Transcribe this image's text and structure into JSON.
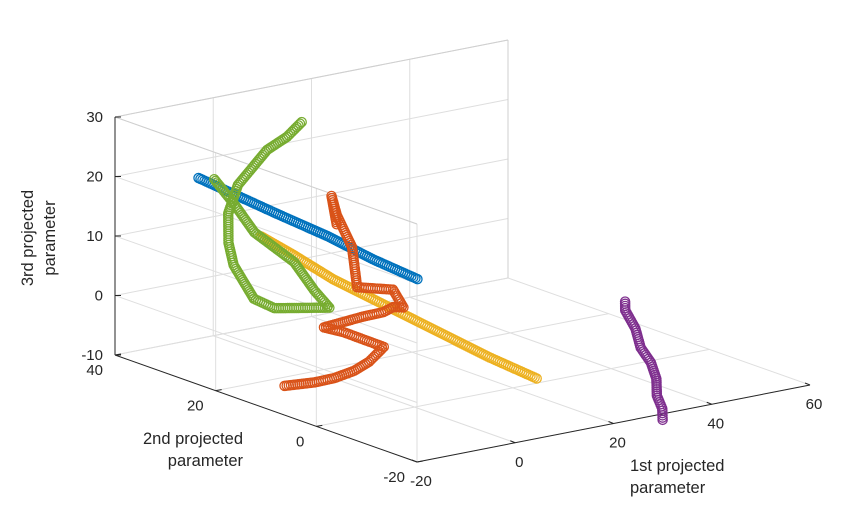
{
  "chart_data": {
    "type": "scatter",
    "projection": "3d",
    "title": "",
    "xlabel": "1st projected parameter",
    "ylabel": "2nd projected parameter",
    "zlabel": "3rd projected parameter",
    "xlabel_lines": [
      "1st projected",
      "parameter"
    ],
    "ylabel_lines": [
      "2nd projected",
      "parameter"
    ],
    "zlabel_lines": [
      "3rd projected",
      "parameter"
    ],
    "xlim": [
      -20,
      60
    ],
    "ylim": [
      -20,
      40
    ],
    "zlim": [
      -10,
      30
    ],
    "xticks": [
      "-20",
      "0",
      "20",
      "40",
      "60"
    ],
    "yticks": [
      "-20",
      "0",
      "20",
      "40"
    ],
    "zticks": [
      "-10",
      "0",
      "10",
      "20",
      "30"
    ],
    "grid": true,
    "marker": "open circle",
    "series": [
      {
        "color": "#0072BD",
        "points": [
          [
            -3,
            40,
            17
          ],
          [
            1,
            36,
            14.5
          ],
          [
            5,
            32,
            12
          ],
          [
            10,
            27,
            9
          ],
          [
            14,
            22,
            6
          ],
          [
            18,
            17,
            3.5
          ]
        ]
      },
      {
        "color": "#EDB120",
        "points": [
          [
            -1,
            29.5,
            10
          ],
          [
            3,
            27,
            7
          ],
          [
            8,
            24,
            3
          ],
          [
            14,
            19.5,
            -1
          ],
          [
            20,
            15,
            -5
          ],
          [
            26,
            10.5,
            -9
          ],
          [
            31,
            6,
            -12
          ]
        ]
      },
      {
        "color": "#77AC30",
        "points": [
          [
            -8,
            32,
            20
          ],
          [
            -8,
            28,
            17
          ],
          [
            -7,
            25,
            13
          ],
          [
            -4,
            20,
            9
          ],
          [
            -3,
            17,
            5
          ],
          [
            -3,
            14,
            3
          ],
          [
            -6,
            22,
            1
          ],
          [
            -3,
            29,
            0
          ],
          [
            -2,
            34,
            4
          ],
          [
            -1,
            36,
            7
          ],
          [
            1,
            38,
            11
          ],
          [
            4,
            39,
            15
          ],
          [
            8,
            40,
            17
          ],
          [
            12,
            41,
            19
          ],
          [
            15,
            40,
            21
          ],
          [
            18,
            40,
            23
          ]
        ]
      },
      {
        "color": "#D95319",
        "points": [
          [
            -7,
            19,
            -11
          ],
          [
            -4,
            16,
            -10
          ],
          [
            -2,
            14,
            -9
          ],
          [
            0,
            12,
            -7.5
          ],
          [
            2,
            11,
            -6
          ],
          [
            5,
            11,
            -4
          ],
          [
            3,
            17,
            -3
          ],
          [
            0,
            18,
            -2
          ],
          [
            7,
            17,
            -1
          ],
          [
            9,
            15,
            0
          ],
          [
            10,
            14,
            1
          ],
          [
            9,
            11,
            2
          ],
          [
            12,
            16,
            3
          ],
          [
            17,
            28,
            -1
          ],
          [
            18,
            30,
            5
          ],
          [
            19,
            34,
            9
          ],
          [
            21,
            37,
            11
          ],
          [
            20,
            35,
            7
          ]
        ]
      },
      {
        "color": "#7E2F8E",
        "points": [
          [
            30,
            -20,
            -11
          ],
          [
            33,
            -17,
            -10.5
          ],
          [
            36,
            -13,
            -10
          ],
          [
            40,
            -9,
            -9
          ],
          [
            43,
            -5,
            -8
          ],
          [
            45,
            -1,
            -7
          ],
          [
            47,
            2,
            -5
          ],
          [
            48,
            5,
            -3
          ],
          [
            49,
            6,
            -2
          ]
        ]
      }
    ]
  }
}
